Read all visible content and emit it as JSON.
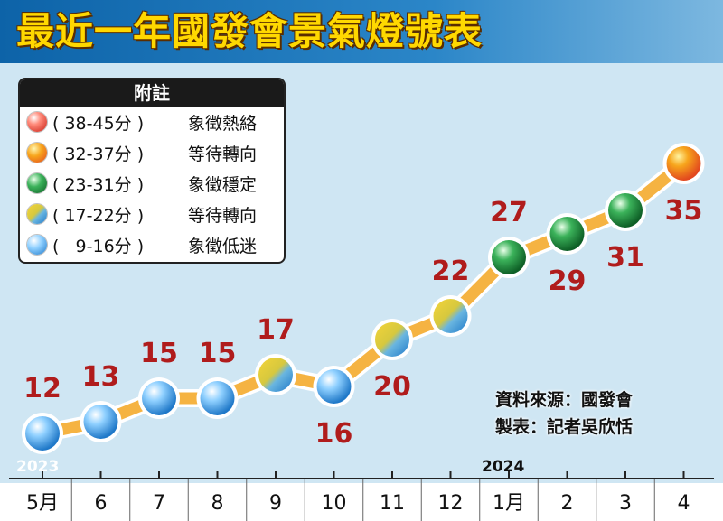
{
  "title": "最近一年國發會景氣燈號表",
  "legend": {
    "title": "附註",
    "items": [
      {
        "range": "( 38-45分 )",
        "desc": "象徵熱絡",
        "color": "#e8352a"
      },
      {
        "range": "( 32-37分 )",
        "desc": "等待轉向",
        "color": "#f7a51c"
      },
      {
        "range": "( 23-31分 )",
        "desc": "象徵穩定",
        "color": "#1c8a3a"
      },
      {
        "range": "( 17-22分 )",
        "desc": "等待轉向",
        "color": "#c9c63a"
      },
      {
        "range": "(   9-16分 )",
        "desc": "象徵低迷",
        "color": "#3a9ee4"
      }
    ]
  },
  "source": {
    "line1": "資料來源：國發會",
    "line2": "製表：記者吳欣恬"
  },
  "chart_data": {
    "type": "line",
    "categories": [
      "5月",
      "6",
      "7",
      "8",
      "9",
      "10",
      "11",
      "12",
      "1月",
      "2",
      "3",
      "4"
    ],
    "values": [
      12,
      13,
      15,
      15,
      17,
      16,
      20,
      22,
      27,
      29,
      31,
      35
    ],
    "series": [
      {
        "values": [
          12,
          13,
          15,
          15,
          17,
          16,
          20,
          22,
          27,
          29,
          31,
          35
        ]
      }
    ],
    "point_signal": [
      "blue",
      "blue",
      "blue",
      "blue",
      "yellow-blue",
      "blue",
      "yellow-blue",
      "yellow-blue",
      "green",
      "green",
      "green",
      "yellow-red"
    ],
    "year_labels": [
      {
        "label": "2023",
        "category": "5月"
      },
      {
        "label": "2024",
        "category": "1月"
      }
    ],
    "ylim": [
      10,
      37
    ],
    "title": "最近一年國發會景氣燈號表",
    "line_color": "#f5b342",
    "value_label_color": "#b01c1c",
    "grid": false
  }
}
